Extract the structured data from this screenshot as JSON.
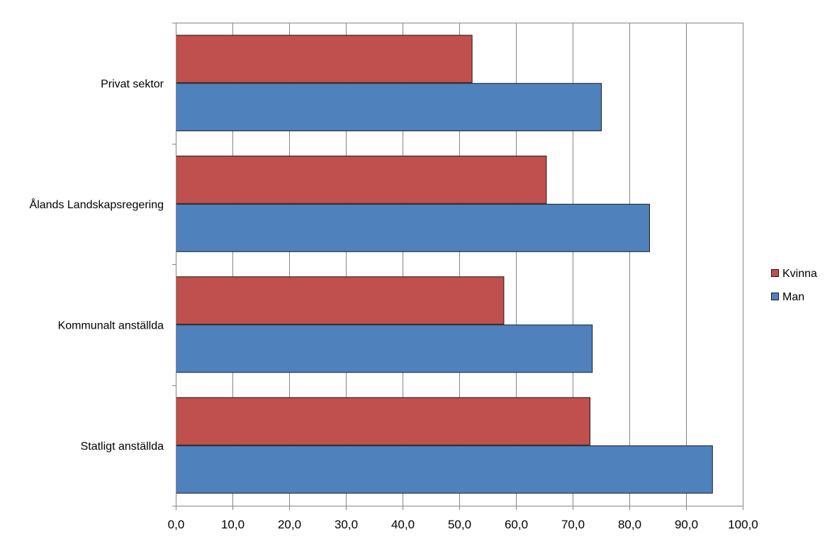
{
  "chart_data": {
    "type": "bar",
    "orientation": "horizontal",
    "categories": [
      "Privat sektor",
      "Ålands Landskapsregering",
      "Kommunalt anställda",
      "Statligt anställda"
    ],
    "series": [
      {
        "name": "Kvinna",
        "color": "#C0504D",
        "values": [
          52.2,
          65.3,
          57.8,
          73.0
        ]
      },
      {
        "name": "Man",
        "color": "#4F81BD",
        "values": [
          75.0,
          83.5,
          73.4,
          94.6
        ]
      }
    ],
    "xlim": [
      0,
      100
    ],
    "ticks": [
      "0,0",
      "10,0",
      "20,0",
      "30,0",
      "40,0",
      "50,0",
      "60,0",
      "70,0",
      "80,0",
      "90,0",
      "100,0"
    ],
    "grid": "vertical",
    "legend": "right"
  }
}
